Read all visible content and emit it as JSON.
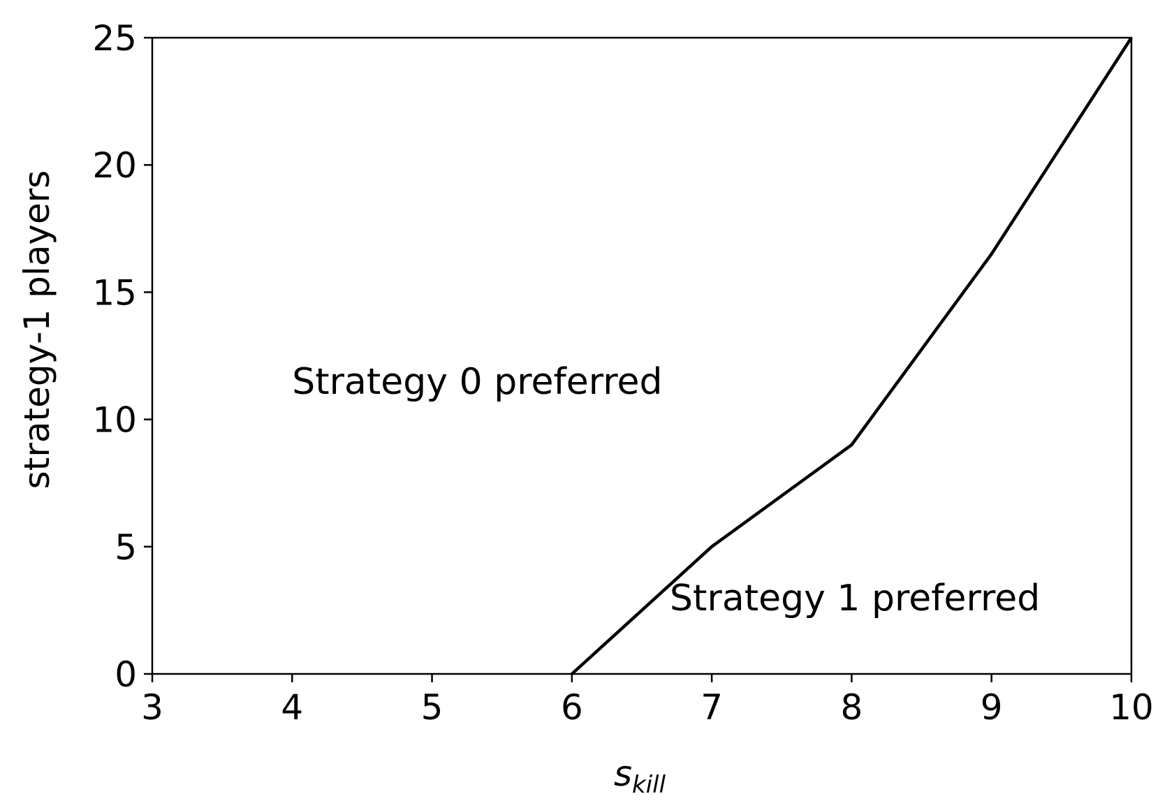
{
  "chart_data": {
    "type": "line",
    "title": "",
    "xlabel": {
      "base": "s",
      "subscript": "kill"
    },
    "ylabel": "strategy-1 players",
    "xlim": [
      3,
      10
    ],
    "ylim": [
      0,
      25
    ],
    "xticks": [
      3,
      4,
      5,
      6,
      7,
      8,
      9,
      10
    ],
    "yticks": [
      0,
      5,
      10,
      15,
      20,
      25
    ],
    "grid": false,
    "legend": "none",
    "series": [
      {
        "color": "#000000",
        "x": [
          6,
          7,
          8,
          9,
          10
        ],
        "y": [
          0,
          5,
          9,
          16.5,
          25
        ]
      }
    ],
    "annotations": [
      {
        "text": "Strategy 0 preferred",
        "x": 4,
        "y": 11
      },
      {
        "text": "Strategy 1 preferred",
        "x": 6.7,
        "y": 2.5
      }
    ]
  }
}
